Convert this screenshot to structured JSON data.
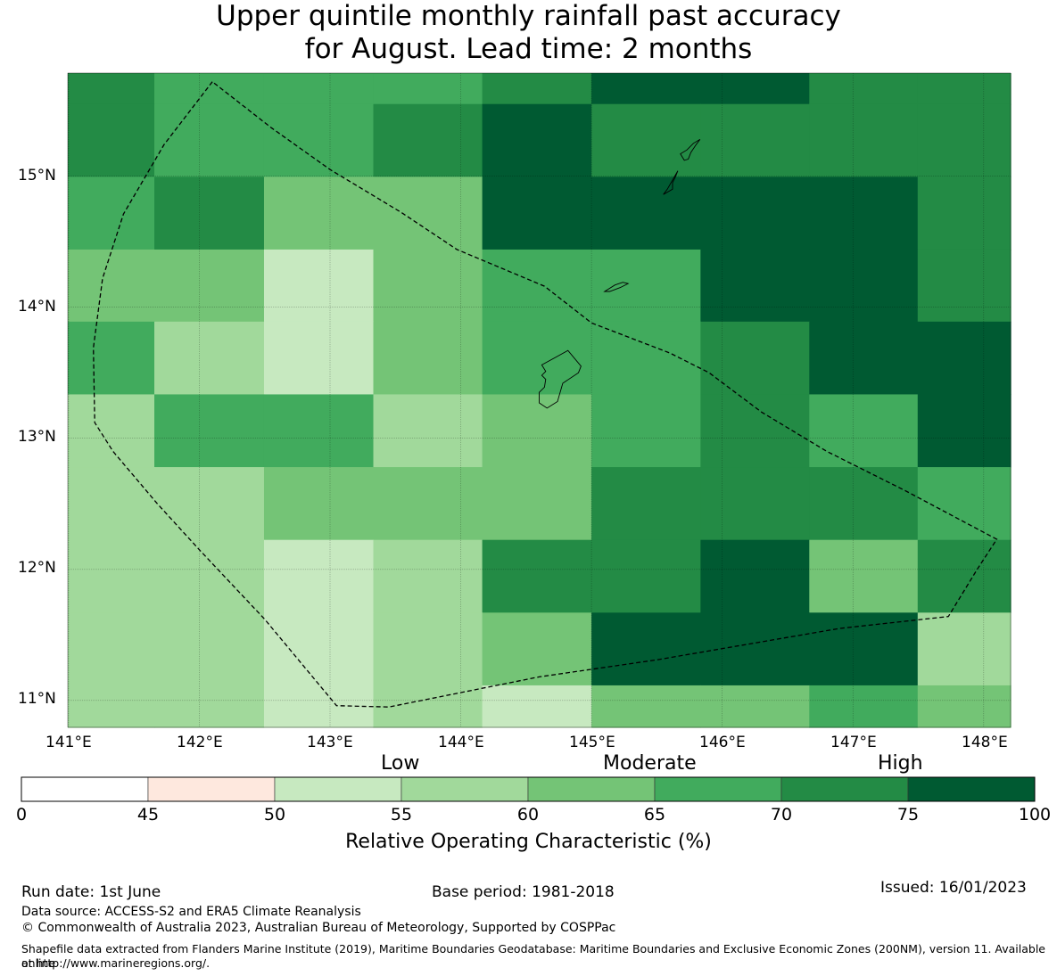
{
  "title_line1": "Upper quintile monthly rainfall past accuracy",
  "title_line2": "for August. Lead time: 2 months",
  "map": {
    "lon_min": 140.994,
    "lon_max": 148.206,
    "lat_min": 10.795,
    "lat_max": 15.786,
    "lon_ticks": [
      141,
      142,
      143,
      144,
      145,
      146,
      147,
      148
    ],
    "lon_tick_labels": [
      "141°E",
      "142°E",
      "143°E",
      "144°E",
      "145°E",
      "146°E",
      "147°E",
      "148°E"
    ],
    "lat_ticks": [
      15,
      14,
      13,
      12,
      11
    ],
    "lat_tick_labels": [
      "15°N",
      "14°N",
      "13°N",
      "12°N",
      "11°N"
    ],
    "grid_lon_edges": [
      140.994,
      141.656,
      142.495,
      143.331,
      144.164,
      145.0,
      145.834,
      146.666,
      147.495,
      148.206
    ],
    "grid_lat_edges": [
      15.786,
      15.55,
      14.995,
      14.44,
      13.89,
      13.335,
      12.78,
      12.225,
      11.67,
      11.115,
      10.795
    ],
    "roc_class_grid": [
      [
        6,
        5,
        5,
        5,
        6,
        7,
        7,
        6,
        6
      ],
      [
        6,
        5,
        5,
        6,
        7,
        6,
        6,
        6,
        6
      ],
      [
        5,
        6,
        4,
        4,
        7,
        7,
        7,
        7,
        6
      ],
      [
        4,
        4,
        2,
        4,
        5,
        5,
        7,
        7,
        6
      ],
      [
        5,
        3,
        2,
        4,
        5,
        5,
        6,
        7,
        7
      ],
      [
        3,
        5,
        5,
        3,
        4,
        5,
        6,
        5,
        7
      ],
      [
        3,
        3,
        4,
        4,
        4,
        6,
        6,
        6,
        5
      ],
      [
        3,
        3,
        2,
        3,
        6,
        6,
        7,
        4,
        6
      ],
      [
        3,
        3,
        2,
        3,
        4,
        7,
        7,
        7,
        3
      ],
      [
        3,
        3,
        2,
        3,
        2,
        4,
        4,
        5,
        4
      ]
    ],
    "eez_boundary": [
      [
        142.1,
        15.72
      ],
      [
        141.73,
        15.24
      ],
      [
        141.42,
        14.71
      ],
      [
        141.26,
        14.22
      ],
      [
        141.19,
        13.69
      ],
      [
        141.2,
        13.12
      ],
      [
        141.34,
        12.9
      ],
      [
        141.68,
        12.5
      ],
      [
        142.0,
        12.15
      ],
      [
        142.5,
        11.62
      ],
      [
        143.05,
        10.96
      ],
      [
        143.45,
        10.95
      ],
      [
        144.6,
        11.18
      ],
      [
        145.5,
        11.31
      ],
      [
        146.9,
        11.55
      ],
      [
        147.73,
        11.64
      ],
      [
        147.95,
        12.0
      ],
      [
        148.1,
        12.23
      ],
      [
        147.4,
        12.6
      ],
      [
        146.8,
        12.9
      ],
      [
        146.3,
        13.2
      ],
      [
        145.9,
        13.5
      ],
      [
        145.6,
        13.65
      ],
      [
        145.0,
        13.88
      ],
      [
        144.64,
        14.16
      ],
      [
        143.97,
        14.44
      ],
      [
        143.55,
        14.72
      ],
      [
        143.0,
        15.05
      ],
      [
        142.55,
        15.37
      ]
    ],
    "islands": [
      [
        [
          144.62,
          13.56
        ],
        [
          144.73,
          13.62
        ],
        [
          144.82,
          13.67
        ],
        [
          144.92,
          13.55
        ],
        [
          144.9,
          13.5
        ],
        [
          144.78,
          13.42
        ],
        [
          144.74,
          13.28
        ],
        [
          144.66,
          13.23
        ],
        [
          144.6,
          13.27
        ],
        [
          144.6,
          13.35
        ],
        [
          144.64,
          13.39
        ],
        [
          144.65,
          13.45
        ],
        [
          144.62,
          13.48
        ],
        [
          144.65,
          13.51
        ]
      ],
      [
        [
          145.58,
          14.9
        ],
        [
          145.62,
          14.97
        ],
        [
          145.66,
          15.04
        ],
        [
          145.64,
          14.99
        ],
        [
          145.62,
          14.95
        ],
        [
          145.62,
          14.9
        ],
        [
          145.55,
          14.86
        ]
      ],
      [
        [
          145.1,
          14.12
        ],
        [
          145.18,
          14.17
        ],
        [
          145.24,
          14.19
        ],
        [
          145.28,
          14.18
        ],
        [
          145.22,
          14.15
        ],
        [
          145.14,
          14.12
        ]
      ],
      [
        [
          145.71,
          15.12
        ],
        [
          145.68,
          15.17
        ],
        [
          145.73,
          15.2
        ],
        [
          145.78,
          15.25
        ],
        [
          145.83,
          15.28
        ],
        [
          145.8,
          15.24
        ],
        [
          145.76,
          15.18
        ],
        [
          145.74,
          15.13
        ]
      ]
    ]
  },
  "colorbar": {
    "category_labels": [
      "Low",
      "Moderate",
      "High"
    ],
    "boundaries": [
      0,
      45,
      50,
      55,
      60,
      65,
      70,
      75,
      100
    ],
    "tick_labels": [
      "0",
      "45",
      "50",
      "55",
      "60",
      "65",
      "70",
      "75",
      "100"
    ],
    "class_colors": [
      "#ffffff",
      "#fee8de",
      "#c7e9c0",
      "#a1d99b",
      "#74c476",
      "#41ab5d",
      "#238b45",
      "#005a32"
    ],
    "title": "Relative Operating Characteristic (%)"
  },
  "footer": {
    "run_date": "Run date: 1st June",
    "base_period": "Base period: 1981-2018",
    "issued": "Issued: 16/01/2023",
    "data_source": "Data source: ACCESS-S2 and ERA5 Climate Reanalysis",
    "copyright": "© Commonwealth of Australia 2023, Australian Bureau of Meteorology, Supported by COSPPac",
    "shapefile_line1": "Shapefile data extracted from Flanders Marine Institute (2019), Maritime Boundaries Geodatabase: Maritime Boundaries and Exclusive Economic Zones (200NM), version 11. Available online",
    "shapefile_line2": "at http://www.marineregions.org/."
  }
}
